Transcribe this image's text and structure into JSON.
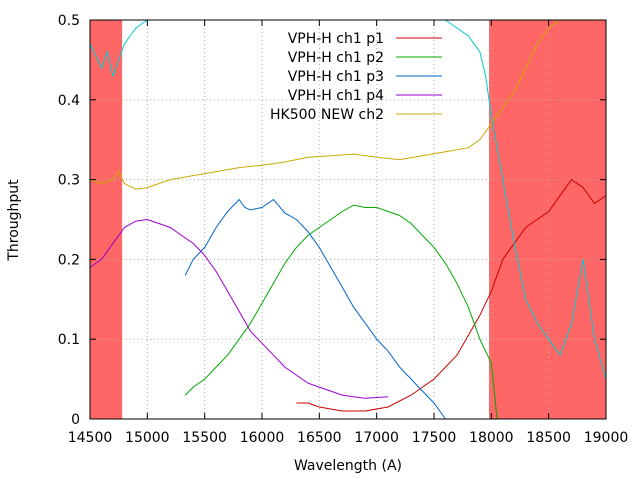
{
  "chart_data": {
    "type": "line",
    "title": "",
    "xlabel": "Wavelength (A)",
    "ylabel": "Throughput",
    "xlim": [
      14500,
      19000
    ],
    "ylim": [
      0,
      0.5
    ],
    "xticks": [
      "14500",
      "15000",
      "15500",
      "16000",
      "16500",
      "17000",
      "17500",
      "18000",
      "18500",
      "19000"
    ],
    "yticks": [
      "0",
      "0.1",
      "0.2",
      "0.3",
      "0.4",
      "0.5"
    ],
    "grid": true,
    "legend_position": "top-right",
    "shaded_regions": [
      {
        "x_start": 14500,
        "x_end": 14780,
        "color": "#ff6666"
      },
      {
        "x_start": 17980,
        "x_end": 19000,
        "color": "#ff6666"
      }
    ],
    "series": [
      {
        "name": "VPH-H ch1 p1",
        "color": "#cc0000",
        "x": [
          16300,
          16400,
          16500,
          16700,
          16900,
          17100,
          17300,
          17500,
          17700,
          17900,
          18000,
          18100,
          18200,
          18300,
          18400,
          18500,
          18600,
          18700,
          18800,
          18900,
          19000
        ],
        "y": [
          0.02,
          0.02,
          0.015,
          0.01,
          0.01,
          0.015,
          0.03,
          0.05,
          0.08,
          0.13,
          0.16,
          0.2,
          0.22,
          0.24,
          0.25,
          0.26,
          0.28,
          0.3,
          0.29,
          0.27,
          0.28
        ]
      },
      {
        "name": "VPH-H ch1 p2",
        "color": "#00aa00",
        "x": [
          15330,
          15400,
          15500,
          15600,
          15700,
          15800,
          15900,
          16000,
          16100,
          16200,
          16300,
          16400,
          16500,
          16600,
          16700,
          16800,
          16900,
          17000,
          17100,
          17200,
          17300,
          17400,
          17500,
          17600,
          17700,
          17800,
          17900,
          18000,
          18050
        ],
        "y": [
          0.03,
          0.04,
          0.05,
          0.065,
          0.08,
          0.1,
          0.12,
          0.145,
          0.17,
          0.195,
          0.215,
          0.23,
          0.24,
          0.25,
          0.26,
          0.268,
          0.265,
          0.265,
          0.26,
          0.255,
          0.245,
          0.23,
          0.215,
          0.195,
          0.17,
          0.14,
          0.1,
          0.07,
          0.0
        ]
      },
      {
        "name": "VPH-H ch1 p3",
        "color": "#0066cc",
        "x": [
          15330,
          15400,
          15500,
          15600,
          15700,
          15800,
          15850,
          15900,
          16000,
          16100,
          16200,
          16300,
          16400,
          16500,
          16600,
          16700,
          16800,
          16900,
          17000,
          17100,
          17200,
          17300,
          17400,
          17500,
          17600
        ],
        "y": [
          0.18,
          0.2,
          0.215,
          0.24,
          0.26,
          0.275,
          0.265,
          0.262,
          0.265,
          0.275,
          0.258,
          0.25,
          0.235,
          0.215,
          0.19,
          0.165,
          0.14,
          0.12,
          0.1,
          0.085,
          0.065,
          0.05,
          0.035,
          0.02,
          0.0
        ]
      },
      {
        "name": "VPH-H ch1 p4",
        "color": "#9900cc",
        "x": [
          14500,
          14600,
          14700,
          14800,
          14900,
          15000,
          15100,
          15200,
          15300,
          15400,
          15500,
          15600,
          15700,
          15800,
          15900,
          16000,
          16100,
          16200,
          16300,
          16400,
          16500,
          16600,
          16700,
          16800,
          16900,
          17000,
          17100
        ],
        "y": [
          0.19,
          0.2,
          0.22,
          0.24,
          0.248,
          0.25,
          0.245,
          0.24,
          0.23,
          0.22,
          0.205,
          0.185,
          0.16,
          0.135,
          0.11,
          0.095,
          0.08,
          0.065,
          0.055,
          0.045,
          0.04,
          0.035,
          0.03,
          0.028,
          0.026,
          0.027,
          0.028
        ]
      },
      {
        "name": "HK500 NEW ch2",
        "color": "#ccaa00",
        "x": [
          14500,
          14600,
          14700,
          14750,
          14800,
          14900,
          15000,
          15200,
          15400,
          15600,
          15800,
          16000,
          16200,
          16400,
          16600,
          16800,
          17000,
          17200,
          17400,
          17600,
          17800,
          17900,
          18000,
          18100,
          18200,
          18300,
          18400,
          18500,
          18600,
          18700,
          18800,
          18900,
          19000
        ],
        "y": [
          0.3,
          0.295,
          0.3,
          0.31,
          0.295,
          0.288,
          0.29,
          0.3,
          0.305,
          0.31,
          0.315,
          0.318,
          0.322,
          0.328,
          0.33,
          0.332,
          0.328,
          0.325,
          0.33,
          0.335,
          0.34,
          0.35,
          0.37,
          0.39,
          0.41,
          0.44,
          0.47,
          0.49,
          0.5,
          0.5,
          0.5,
          0.5,
          0.5
        ]
      },
      {
        "name": "",
        "color": "#00cccc",
        "x": [
          14500,
          14600,
          14650,
          14700,
          14750,
          14800,
          14900,
          15000,
          15100,
          15200,
          15400,
          15600,
          15800,
          16000,
          16200,
          16400,
          16600,
          16800,
          17000,
          17200,
          17400,
          17600,
          17700,
          17800,
          17900,
          17950,
          18000,
          18100,
          18200,
          18300,
          18400,
          18500,
          18600,
          18700,
          18800,
          18900,
          19000
        ],
        "y": [
          0.47,
          0.44,
          0.46,
          0.43,
          0.45,
          0.47,
          0.49,
          0.5,
          0.5,
          0.5,
          0.5,
          0.5,
          0.5,
          0.5,
          0.5,
          0.5,
          0.5,
          0.5,
          0.5,
          0.5,
          0.5,
          0.5,
          0.49,
          0.48,
          0.46,
          0.43,
          0.38,
          0.3,
          0.22,
          0.15,
          0.12,
          0.1,
          0.08,
          0.12,
          0.2,
          0.1,
          0.05
        ]
      }
    ]
  }
}
